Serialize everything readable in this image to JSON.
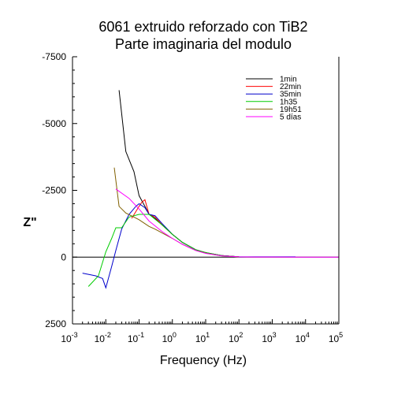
{
  "chart_data": {
    "type": "line",
    "title_line1": "6061 extruido reforzado con TiB2",
    "title_line2": "Parte imaginaria del modulo",
    "xlabel": "Frequency (Hz)",
    "ylabel": "Z\"",
    "x_scale": "log",
    "xlim": [
      0.001,
      100000
    ],
    "ylim": [
      2500,
      -7500
    ],
    "x_ticks": [
      {
        "value": 0.001,
        "base": "10",
        "exp": "-3"
      },
      {
        "value": 0.01,
        "base": "10",
        "exp": "-2"
      },
      {
        "value": 0.1,
        "base": "10",
        "exp": "-1"
      },
      {
        "value": 1,
        "base": "10",
        "exp": "0"
      },
      {
        "value": 10,
        "base": "10",
        "exp": "1"
      },
      {
        "value": 100,
        "base": "10",
        "exp": "2"
      },
      {
        "value": 1000,
        "base": "10",
        "exp": "3"
      },
      {
        "value": 10000,
        "base": "10",
        "exp": "4"
      },
      {
        "value": 100000,
        "base": "10",
        "exp": "5"
      }
    ],
    "y_ticks": [
      {
        "value": -7500,
        "label": "-7500"
      },
      {
        "value": -5000,
        "label": "-5000"
      },
      {
        "value": -2500,
        "label": "-2500"
      },
      {
        "value": 0,
        "label": "0"
      },
      {
        "value": 2500,
        "label": "2500"
      }
    ],
    "zero_line": 0,
    "grid": false,
    "legend_position": "top-right",
    "series": [
      {
        "name": "1min",
        "color": "#000000",
        "x": [
          0.025,
          0.04,
          0.07,
          0.1,
          0.15,
          0.2,
          0.3,
          0.5,
          1,
          2,
          5,
          10,
          30,
          100
        ],
        "y": [
          -6250,
          -3950,
          -3200,
          -2300,
          -1900,
          -1600,
          -1450,
          -1200,
          -850,
          -550,
          -280,
          -170,
          -60,
          -10
        ]
      },
      {
        "name": "22min",
        "color": "#ff0000",
        "x": [
          0.06,
          0.1,
          0.12,
          0.15,
          0.2,
          0.3,
          0.5,
          1,
          2,
          5,
          10,
          30,
          100
        ],
        "y": [
          -1450,
          -1900,
          -2050,
          -2150,
          -1600,
          -1500,
          -1200,
          -850,
          -550,
          -280,
          -160,
          -60,
          -10
        ]
      },
      {
        "name": "35min",
        "color": "#0000cc",
        "x": [
          0.002,
          0.005,
          0.008,
          0.01,
          0.015,
          0.02,
          0.03,
          0.05,
          0.08,
          0.1,
          0.15,
          0.2,
          0.3,
          0.5,
          1,
          2,
          5,
          10,
          30,
          100,
          300,
          1000,
          5000
        ],
        "y": [
          600,
          700,
          800,
          1150,
          350,
          -250,
          -1050,
          -1600,
          -1900,
          -2000,
          -1850,
          -1600,
          -1550,
          -1250,
          -850,
          -550,
          -280,
          -160,
          -60,
          -10,
          -10,
          -10,
          -10
        ]
      },
      {
        "name": "1h35",
        "color": "#00cc00",
        "x": [
          0.003,
          0.006,
          0.01,
          0.015,
          0.02,
          0.03,
          0.05,
          0.1,
          0.2,
          0.5,
          1,
          2,
          5,
          10,
          30,
          100
        ],
        "y": [
          1100,
          700,
          -200,
          -700,
          -1100,
          -1100,
          -1500,
          -1600,
          -1600,
          -1200,
          -850,
          -550,
          -280,
          -170,
          -60,
          -10
        ]
      },
      {
        "name": "19h51",
        "color": "#806000",
        "x": [
          0.018,
          0.025,
          0.04,
          0.07,
          0.1,
          0.2,
          0.3,
          0.5,
          1,
          2,
          5,
          10,
          30,
          100
        ],
        "y": [
          -3350,
          -1900,
          -1650,
          -1500,
          -1400,
          -1150,
          -1050,
          -900,
          -700,
          -480,
          -250,
          -150,
          -50,
          -10
        ]
      },
      {
        "name": "5 días",
        "color": "#ff00ff",
        "x": [
          0.02,
          0.05,
          0.1,
          0.2,
          0.5,
          1,
          2,
          5,
          10,
          30,
          100,
          300,
          1000,
          10000,
          100000
        ],
        "y": [
          -2550,
          -2200,
          -1800,
          -1350,
          -950,
          -700,
          -480,
          -250,
          -140,
          -50,
          -10,
          -5,
          -5,
          0,
          0
        ]
      }
    ]
  }
}
